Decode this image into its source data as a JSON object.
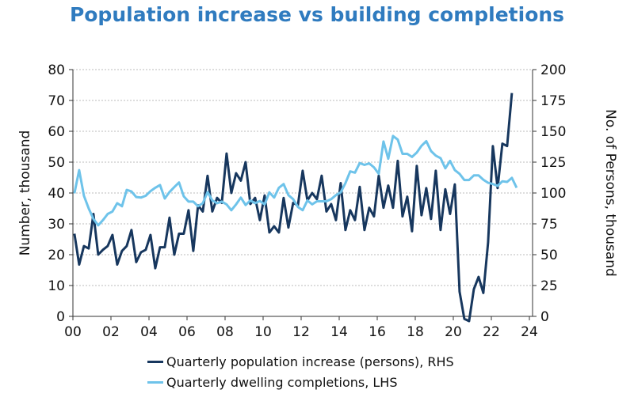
{
  "chart_data": {
    "type": "line",
    "title": "Population increase vs building completions",
    "frequency": "quarterly",
    "start": "2000Q1",
    "x_ticks": [
      "00",
      "02",
      "04",
      "06",
      "08",
      "10",
      "12",
      "14",
      "16",
      "18",
      "20",
      "22",
      "24"
    ],
    "xlim": [
      2000,
      2024
    ],
    "ylabel_left": "Number, thousand",
    "ylabel_right": "No. of Persons, thousand",
    "ylim_left": [
      0,
      80
    ],
    "ylim_right": [
      0,
      200
    ],
    "y_ticks_left": [
      "0",
      "10",
      "20",
      "30",
      "40",
      "50",
      "60",
      "70",
      "80"
    ],
    "y_ticks_right": [
      "0",
      "25",
      "50",
      "75",
      "100",
      "125",
      "150",
      "175",
      "200"
    ],
    "grid": "horizontal dotted",
    "legend_placement": "bottom",
    "series": [
      {
        "name": "Quarterly population increase (persons), RHS",
        "axis": "right",
        "color": "#17375e",
        "values": [
          67,
          42,
          57,
          55,
          83,
          50,
          54,
          57,
          66,
          42,
          53,
          57,
          70,
          44,
          52,
          54,
          66,
          39,
          56,
          56,
          80,
          50,
          67,
          67,
          86,
          53,
          90,
          85,
          114,
          85,
          96,
          92,
          132,
          100,
          116,
          110,
          125,
          91,
          96,
          78,
          98,
          68,
          73,
          68,
          96,
          72,
          92,
          90,
          118,
          94,
          100,
          95,
          114,
          85,
          91,
          78,
          108,
          70,
          86,
          78,
          105,
          70,
          88,
          81,
          114,
          88,
          106,
          88,
          126,
          81,
          97,
          69,
          122,
          82,
          104,
          79,
          118,
          70,
          103,
          83,
          107,
          20,
          -2,
          -4,
          22,
          32,
          19,
          60,
          138,
          104,
          140,
          138,
          181
        ]
      },
      {
        "name": "Quarterly dwelling completions, LHS",
        "axis": "left",
        "color": "#6ec3ea",
        "values": [
          39.9,
          47.4,
          39.1,
          35,
          31.6,
          29.5,
          31.2,
          33.2,
          34,
          36.7,
          35.7,
          41,
          40.5,
          38.7,
          38.5,
          39.1,
          40.6,
          41.7,
          42.6,
          38.2,
          40.3,
          41.9,
          43.4,
          38.9,
          37.2,
          37.2,
          35.7,
          36.7,
          40.3,
          37.6,
          36.7,
          37.2,
          36.3,
          34.4,
          36.3,
          38.5,
          36.1,
          37.6,
          36.7,
          37.4,
          36.3,
          40.2,
          38.5,
          41.7,
          42.9,
          39.3,
          38,
          35.5,
          34.4,
          37.6,
          36.3,
          37.3,
          37.3,
          37.3,
          38,
          39.3,
          40.2,
          43.2,
          47,
          46.6,
          49.7,
          49.1,
          49.6,
          48.3,
          46.2,
          56.7,
          51.1,
          58.5,
          57.3,
          52.7,
          52.7,
          51.7,
          53.1,
          55.3,
          56.8,
          53.6,
          52.1,
          51.3,
          48,
          50.4,
          47.4,
          46.2,
          44.2,
          44.2,
          45.7,
          45.7,
          44.3,
          43.3,
          42.9,
          42.3,
          43.8,
          43.6,
          44.9,
          41.7
        ]
      }
    ]
  }
}
